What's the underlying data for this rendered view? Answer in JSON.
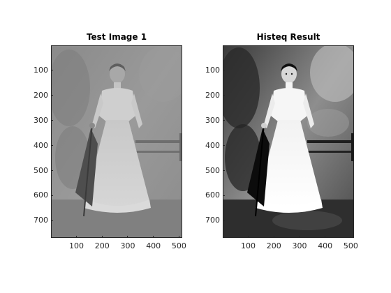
{
  "figure": {
    "axes": [
      {
        "id": "left",
        "title": "Test Image 1",
        "image": "photo-woman-with-umbrella-low-contrast",
        "y_ticks": [
          "100",
          "200",
          "300",
          "400",
          "500",
          "600",
          "700"
        ],
        "x_ticks": [
          "100",
          "200",
          "300",
          "400",
          "500"
        ],
        "y_tick_values": [
          100,
          200,
          300,
          400,
          500,
          600,
          700
        ],
        "x_tick_values": [
          100,
          200,
          300,
          400,
          500
        ],
        "xlim": [
          0.5,
          512.5
        ],
        "ylim": [
          0.5,
          768.5
        ]
      },
      {
        "id": "right",
        "title": "Histeq Result",
        "image": "photo-woman-with-umbrella-equalized",
        "y_ticks": [
          "100",
          "200",
          "300",
          "400",
          "500",
          "600",
          "700"
        ],
        "x_ticks": [
          "100",
          "200",
          "300",
          "400",
          "500"
        ],
        "y_tick_values": [
          100,
          200,
          300,
          400,
          500,
          600,
          700
        ],
        "x_tick_values": [
          100,
          200,
          300,
          400,
          500
        ],
        "xlim": [
          0.5,
          512.5
        ],
        "ylim": [
          0.5,
          768.5
        ]
      }
    ]
  }
}
